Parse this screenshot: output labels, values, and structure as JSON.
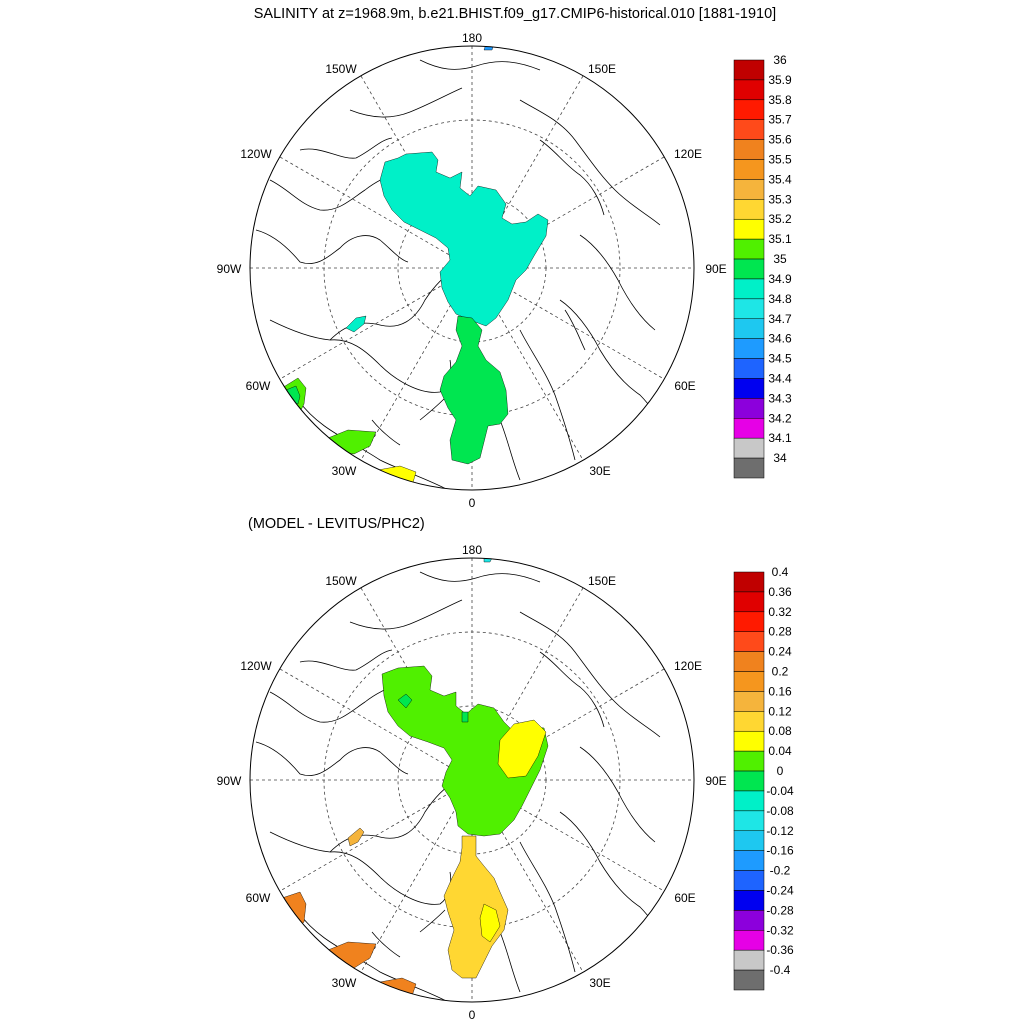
{
  "title": "SALINITY at z=1968.9m, b.e21.BHIST.f09_g17.CMIP6-historical.010 [1881-1910]",
  "subtitle": "(MODEL - LEVITUS/PHC2)",
  "lon_labels": {
    "deg180": "180",
    "deg0": "0",
    "w150": "150W",
    "e150": "150E",
    "w120": "120W",
    "e120": "120E",
    "w90": "90W",
    "e90": "90E",
    "w60": "60W",
    "e60": "60E",
    "w30": "30W",
    "e30": "30E"
  },
  "colorbar_top": {
    "labels": [
      "36",
      "35.9",
      "35.8",
      "35.7",
      "35.6",
      "35.5",
      "35.4",
      "35.3",
      "35.2",
      "35.1",
      "35",
      "34.9",
      "34.8",
      "34.7",
      "34.6",
      "34.5",
      "34.4",
      "34.3",
      "34.2",
      "34.1",
      "34"
    ],
    "colors": [
      "#c00000",
      "#e00000",
      "#ff1a00",
      "#ff4a1a",
      "#f0821e",
      "#f5961e",
      "#f5b43c",
      "#ffd732",
      "#ffff00",
      "#50f000",
      "#00e650",
      "#00f0c8",
      "#1ee6e6",
      "#1ec8f0",
      "#1e9bff",
      "#1e64ff",
      "#0000f0",
      "#8c00dc",
      "#e600e6",
      "#c8c8c8",
      "#6e6e6e"
    ]
  },
  "colorbar_bottom": {
    "labels": [
      "0.4",
      "0.36",
      "0.32",
      "0.28",
      "0.24",
      "0.2",
      "0.16",
      "0.12",
      "0.08",
      "0.04",
      "0",
      "-0.04",
      "-0.08",
      "-0.12",
      "-0.16",
      "-0.2",
      "-0.24",
      "-0.28",
      "-0.32",
      "-0.36",
      "-0.4"
    ],
    "colors": [
      "#c00000",
      "#e00000",
      "#ff1a00",
      "#ff4a1a",
      "#f0821e",
      "#f5961e",
      "#f5b43c",
      "#ffd732",
      "#ffff00",
      "#50f000",
      "#00e650",
      "#00f0c8",
      "#1ee6e6",
      "#1ec8f0",
      "#1e9bff",
      "#1e64ff",
      "#0000f0",
      "#8c00dc",
      "#e600e6",
      "#c8c8c8",
      "#6e6e6e"
    ]
  },
  "field_colors": {
    "top_basin": "#00f0c8",
    "top_strait": "#00e650",
    "top_labrador": "#50f000",
    "top_labrador_core": "#00e650",
    "top_warm": "#ffff00",
    "bottom_basin": "#50f000",
    "bottom_strait": "#ffd732",
    "bottom_nordic": "#ffd732",
    "bottom_warm": "#f0821e",
    "bottom_patch": "#ffff00",
    "bottom_cool": "#1ee6e6"
  }
}
